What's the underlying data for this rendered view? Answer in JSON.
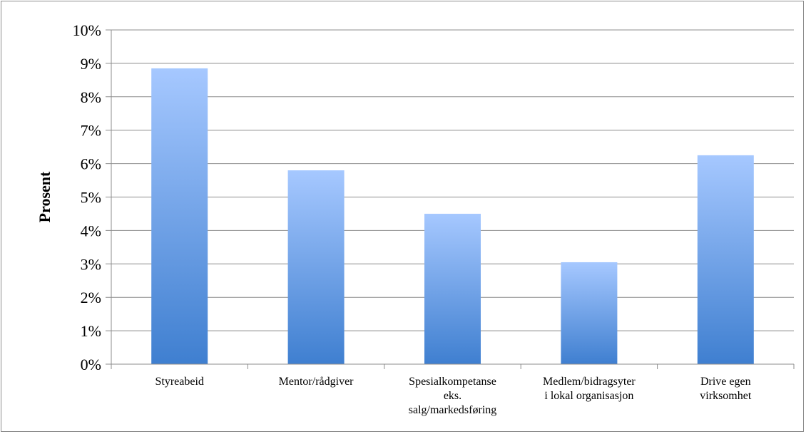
{
  "chart_data": {
    "type": "bar",
    "title": "",
    "xlabel": "",
    "ylabel": "Prosent",
    "ylim": [
      0,
      10
    ],
    "y_ticks": [
      "0%",
      "1%",
      "2%",
      "3%",
      "4%",
      "5%",
      "6%",
      "7%",
      "8%",
      "9%",
      "10%"
    ],
    "grid": true,
    "legend": "none",
    "categories": [
      [
        "Styreabeid"
      ],
      [
        "Mentor/rådgiver"
      ],
      [
        "Spesialkompetanse",
        "eks.",
        "salg/markedsføring"
      ],
      [
        "Medlem/bidragsyter",
        "i lokal organisasjon"
      ],
      [
        "Drive egen",
        "virksomhet"
      ]
    ],
    "values": [
      8.85,
      5.8,
      4.5,
      3.05,
      6.25
    ],
    "colors": {
      "bar_top": "#a6c8ff",
      "bar_bottom": "#3f7fd0",
      "grid": "#8c8c8c"
    }
  }
}
